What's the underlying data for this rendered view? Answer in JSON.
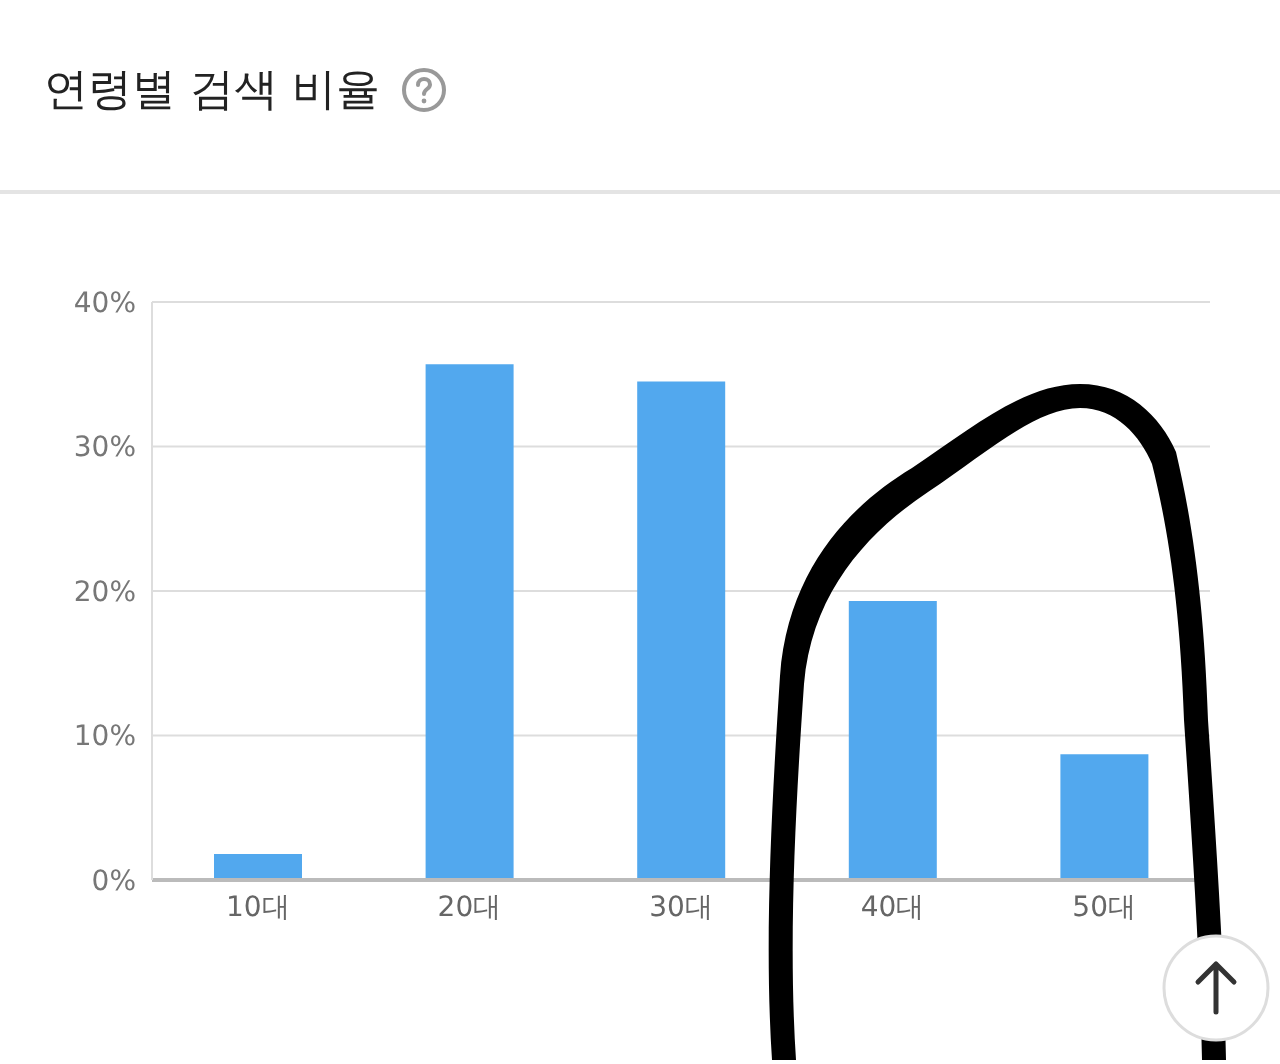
{
  "chart_data": {
    "type": "bar",
    "title": "연령별 검색 비율",
    "categories": [
      "10대",
      "20대",
      "30대",
      "40대",
      "50대"
    ],
    "values": [
      1.8,
      35.7,
      34.5,
      19.3,
      8.7
    ],
    "color": "#52a8ee",
    "ylim": [
      0,
      40
    ],
    "yticks": [
      {
        "value": 0,
        "label": "0%"
      },
      {
        "value": 10,
        "label": "10%"
      },
      {
        "value": 20,
        "label": "20%"
      },
      {
        "value": 30,
        "label": "30%"
      },
      {
        "value": 40,
        "label": "40%"
      }
    ],
    "grid": "y"
  }
}
